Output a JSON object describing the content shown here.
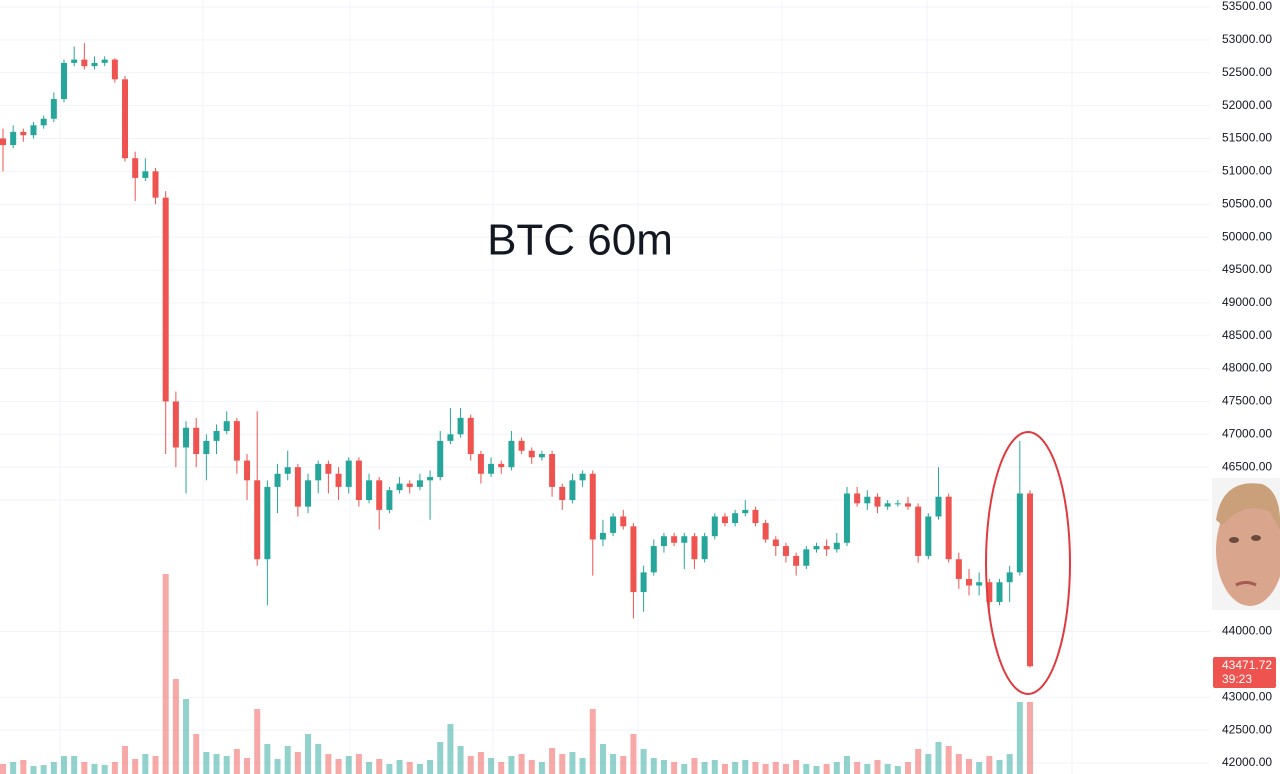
{
  "chart_data": {
    "type": "candlestick",
    "title": "BTC 60m",
    "up_color": "#26a69a",
    "down_color": "#ef5350",
    "grid": true,
    "ylim": [
      42000,
      53500
    ],
    "yticks": [
      {
        "value": 53500,
        "label": "53500.00"
      },
      {
        "value": 53000,
        "label": "53000.00"
      },
      {
        "value": 52500,
        "label": "52500.00"
      },
      {
        "value": 52000,
        "label": "52000.00"
      },
      {
        "value": 51500,
        "label": "51500.00"
      },
      {
        "value": 51000,
        "label": "51000.00"
      },
      {
        "value": 50500,
        "label": "50500.00"
      },
      {
        "value": 50000,
        "label": "50000.00"
      },
      {
        "value": 49500,
        "label": "49500.00"
      },
      {
        "value": 49000,
        "label": "49000.00"
      },
      {
        "value": 48500,
        "label": "48500.00"
      },
      {
        "value": 48000,
        "label": "48000.00"
      },
      {
        "value": 47500,
        "label": "47500.00"
      },
      {
        "value": 47000,
        "label": "47000.00"
      },
      {
        "value": 46500,
        "label": "46500.00"
      },
      {
        "value": 46000,
        "label": "46000.00"
      },
      {
        "value": 44000,
        "label": "44000.00"
      },
      {
        "value": 43000,
        "label": "43000.00"
      },
      {
        "value": 42500,
        "label": "42500.00"
      },
      {
        "value": 42000,
        "label": "42000.00"
      }
    ],
    "last_price": {
      "value": 43471.72,
      "label": "43471.72",
      "countdown": "39:23"
    },
    "ohlc": [
      [
        51500,
        51650,
        51000,
        51400
      ],
      [
        51400,
        51700,
        51350,
        51600
      ],
      [
        51600,
        51650,
        51450,
        51550
      ],
      [
        51550,
        51750,
        51500,
        51700
      ],
      [
        51700,
        51850,
        51650,
        51800
      ],
      [
        51800,
        52200,
        51750,
        52100
      ],
      [
        52100,
        52700,
        52050,
        52650
      ],
      [
        52650,
        52900,
        52600,
        52700
      ],
      [
        52700,
        52950,
        52550,
        52600
      ],
      [
        52600,
        52750,
        52550,
        52650
      ],
      [
        52650,
        52750,
        52600,
        52700
      ],
      [
        52700,
        52720,
        52350,
        52400
      ],
      [
        52400,
        52450,
        51150,
        51200
      ],
      [
        51200,
        51300,
        50550,
        50900
      ],
      [
        50900,
        51200,
        50850,
        51000
      ],
      [
        51000,
        51050,
        50500,
        50600
      ],
      [
        50600,
        50700,
        46700,
        47500
      ],
      [
        47500,
        47650,
        46500,
        46800
      ],
      [
        46800,
        47200,
        46100,
        47100
      ],
      [
        47100,
        47250,
        46500,
        46700
      ],
      [
        46700,
        47000,
        46300,
        46900
      ],
      [
        46900,
        47150,
        46700,
        47050
      ],
      [
        47050,
        47350,
        47000,
        47200
      ],
      [
        47200,
        47250,
        46400,
        46600
      ],
      [
        46600,
        46700,
        46000,
        46300
      ],
      [
        46300,
        47350,
        45000,
        45100
      ],
      [
        45100,
        46300,
        44400,
        46200
      ],
      [
        46200,
        46550,
        45800,
        46400
      ],
      [
        46400,
        46750,
        46300,
        46500
      ],
      [
        46500,
        46550,
        45750,
        45900
      ],
      [
        45900,
        46400,
        45800,
        46300
      ],
      [
        46300,
        46600,
        46100,
        46550
      ],
      [
        46550,
        46600,
        46100,
        46400
      ],
      [
        46400,
        46500,
        46000,
        46200
      ],
      [
        46200,
        46650,
        46100,
        46600
      ],
      [
        46600,
        46650,
        45900,
        46000
      ],
      [
        46000,
        46400,
        45950,
        46300
      ],
      [
        46300,
        46350,
        45550,
        45850
      ],
      [
        45850,
        46200,
        45800,
        46150
      ],
      [
        46150,
        46350,
        46100,
        46250
      ],
      [
        46250,
        46300,
        46100,
        46200
      ],
      [
        46200,
        46400,
        46150,
        46300
      ],
      [
        46300,
        46450,
        45700,
        46350
      ],
      [
        46350,
        47050,
        46300,
        46900
      ],
      [
        46900,
        47400,
        46850,
        47000
      ],
      [
        47000,
        47400,
        46950,
        47250
      ],
      [
        47250,
        47300,
        46600,
        46700
      ],
      [
        46700,
        46750,
        46250,
        46400
      ],
      [
        46400,
        46650,
        46350,
        46550
      ],
      [
        46550,
        46600,
        46400,
        46500
      ],
      [
        46500,
        47050,
        46450,
        46900
      ],
      [
        46900,
        46950,
        46700,
        46750
      ],
      [
        46750,
        46800,
        46550,
        46650
      ],
      [
        46650,
        46750,
        46600,
        46700
      ],
      [
        46700,
        46750,
        46050,
        46200
      ],
      [
        46200,
        46250,
        45850,
        46000
      ],
      [
        46000,
        46400,
        45950,
        46300
      ],
      [
        46300,
        46450,
        46200,
        46400
      ],
      [
        46400,
        46450,
        44850,
        45400
      ],
      [
        45400,
        45700,
        45300,
        45500
      ],
      [
        45500,
        45800,
        45450,
        45750
      ],
      [
        45750,
        45850,
        45550,
        45600
      ],
      [
        45600,
        45650,
        44200,
        44600
      ],
      [
        44600,
        45000,
        44300,
        44900
      ],
      [
        44900,
        45400,
        44850,
        45300
      ],
      [
        45300,
        45500,
        45200,
        45450
      ],
      [
        45450,
        45500,
        45300,
        45350
      ],
      [
        45350,
        45500,
        44950,
        45450
      ],
      [
        45450,
        45500,
        44950,
        45100
      ],
      [
        45100,
        45500,
        45050,
        45450
      ],
      [
        45450,
        45800,
        45400,
        45750
      ],
      [
        45750,
        45800,
        45600,
        45650
      ],
      [
        45650,
        45850,
        45600,
        45800
      ],
      [
        45800,
        46000,
        45750,
        45850
      ],
      [
        45850,
        45900,
        45600,
        45650
      ],
      [
        45650,
        45700,
        45350,
        45400
      ],
      [
        45400,
        45450,
        45150,
        45300
      ],
      [
        45300,
        45350,
        45050,
        45150
      ],
      [
        45150,
        45200,
        44850,
        45000
      ],
      [
        45000,
        45300,
        44950,
        45250
      ],
      [
        45250,
        45350,
        45200,
        45300
      ],
      [
        45300,
        45400,
        45150,
        45250
      ],
      [
        45250,
        45500,
        45200,
        45350
      ],
      [
        45350,
        46200,
        45300,
        46100
      ],
      [
        46100,
        46200,
        45900,
        45950
      ],
      [
        45950,
        46150,
        45850,
        46050
      ],
      [
        46050,
        46100,
        45800,
        45900
      ],
      [
        45900,
        46000,
        45850,
        45950
      ],
      [
        45950,
        46000,
        45900,
        45950
      ],
      [
        45950,
        46050,
        45850,
        45900
      ],
      [
        45900,
        45950,
        45050,
        45150
      ],
      [
        45150,
        45800,
        45100,
        45750
      ],
      [
        45750,
        46500,
        45700,
        46050
      ],
      [
        46050,
        46100,
        45050,
        45100
      ],
      [
        45100,
        45200,
        44650,
        44800
      ],
      [
        44800,
        44950,
        44550,
        44700
      ],
      [
        44700,
        44900,
        44550,
        44750
      ],
      [
        44750,
        44800,
        44300,
        44450
      ],
      [
        44450,
        44800,
        44400,
        44750
      ],
      [
        44750,
        45000,
        44450,
        44900
      ],
      [
        44900,
        46900,
        44850,
        46100
      ],
      [
        46100,
        46150,
        43450,
        43471.72
      ]
    ],
    "volume": [
      10,
      12,
      14,
      8,
      9,
      12,
      18,
      18,
      12,
      10,
      9,
      12,
      28,
      15,
      20,
      18,
      200,
      95,
      75,
      40,
      22,
      20,
      18,
      25,
      16,
      65,
      30,
      15,
      28,
      22,
      40,
      30,
      20,
      15,
      18,
      20,
      12,
      15,
      10,
      14,
      12,
      10,
      14,
      32,
      50,
      28,
      18,
      22,
      16,
      12,
      18,
      20,
      14,
      12,
      26,
      20,
      22,
      16,
      65,
      30,
      20,
      18,
      40,
      25,
      16,
      14,
      12,
      10,
      16,
      12,
      14,
      10,
      12,
      14,
      12,
      10,
      12,
      10,
      14,
      10,
      8,
      10,
      12,
      18,
      12,
      10,
      14,
      10,
      8,
      12,
      25,
      20,
      32,
      28,
      20,
      15,
      12,
      18,
      14,
      20,
      72,
      72
    ]
  }
}
